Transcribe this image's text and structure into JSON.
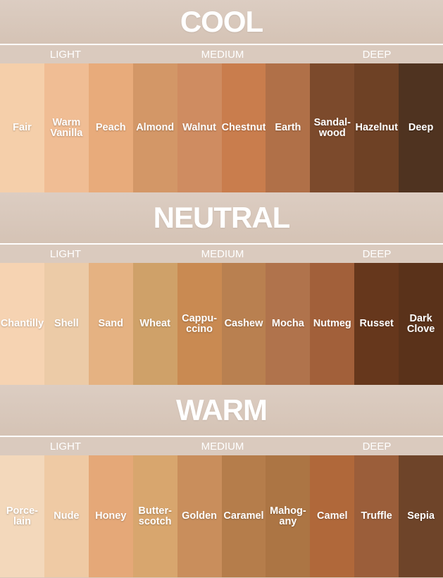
{
  "sections": [
    {
      "title": "COOL",
      "groups": [
        "LIGHT",
        "MEDIUM",
        "DEEP"
      ],
      "swatches": [
        {
          "lines": [
            "Fair"
          ],
          "color": "#f5cfaa"
        },
        {
          "lines": [
            "Warm",
            "Vanilla"
          ],
          "color": "#f0bd94"
        },
        {
          "lines": [
            "Peach"
          ],
          "color": "#e8ab7b"
        },
        {
          "lines": [
            "Almond"
          ],
          "color": "#d39767"
        },
        {
          "lines": [
            "Walnut"
          ],
          "color": "#cf8c61"
        },
        {
          "lines": [
            "Chestnut"
          ],
          "color": "#c97d4d"
        },
        {
          "lines": [
            "Earth"
          ],
          "color": "#b07048"
        },
        {
          "lines": [
            "Sandal-",
            "wood"
          ],
          "color": "#7c4a2c"
        },
        {
          "lines": [
            "Hazelnut"
          ],
          "color": "#6e4125"
        },
        {
          "lines": [
            "Deep"
          ],
          "color": "#4f3320"
        }
      ]
    },
    {
      "title": "NEUTRAL",
      "groups": [
        "LIGHT",
        "MEDIUM",
        "DEEP"
      ],
      "swatches": [
        {
          "lines": [
            "Chantilly"
          ],
          "color": "#f6d3b2"
        },
        {
          "lines": [
            "Shell"
          ],
          "color": "#eccba7"
        },
        {
          "lines": [
            "Sand"
          ],
          "color": "#e5b282"
        },
        {
          "lines": [
            "Wheat"
          ],
          "color": "#cfa169"
        },
        {
          "lines": [
            "Cappu-",
            "ccino"
          ],
          "color": "#c98a52"
        },
        {
          "lines": [
            "Cashew"
          ],
          "color": "#b98050"
        },
        {
          "lines": [
            "Mocha"
          ],
          "color": "#b0734c"
        },
        {
          "lines": [
            "Nutmeg"
          ],
          "color": "#a2603a"
        },
        {
          "lines": [
            "Russet"
          ],
          "color": "#66371c"
        },
        {
          "lines": [
            "Dark",
            "Clove"
          ],
          "color": "#5a321a"
        }
      ]
    },
    {
      "title": "WARM",
      "groups": [
        "LIGHT",
        "MEDIUM",
        "DEEP"
      ],
      "swatches": [
        {
          "lines": [
            "Porce-",
            "lain"
          ],
          "color": "#f3d8bb"
        },
        {
          "lines": [
            "Nude"
          ],
          "color": "#efcaa4"
        },
        {
          "lines": [
            "Honey"
          ],
          "color": "#e5a878"
        },
        {
          "lines": [
            "Butter-",
            "scotch"
          ],
          "color": "#d8a66e"
        },
        {
          "lines": [
            "Golden"
          ],
          "color": "#c98e5c"
        },
        {
          "lines": [
            "Caramel"
          ],
          "color": "#b57d4b"
        },
        {
          "lines": [
            "Mahog-",
            "any"
          ],
          "color": "#ac7544"
        },
        {
          "lines": [
            "Camel"
          ],
          "color": "#b0683a"
        },
        {
          "lines": [
            "Truffle"
          ],
          "color": "#9b5e3a"
        },
        {
          "lines": [
            "Sepia"
          ],
          "color": "#6e4429"
        }
      ]
    }
  ]
}
